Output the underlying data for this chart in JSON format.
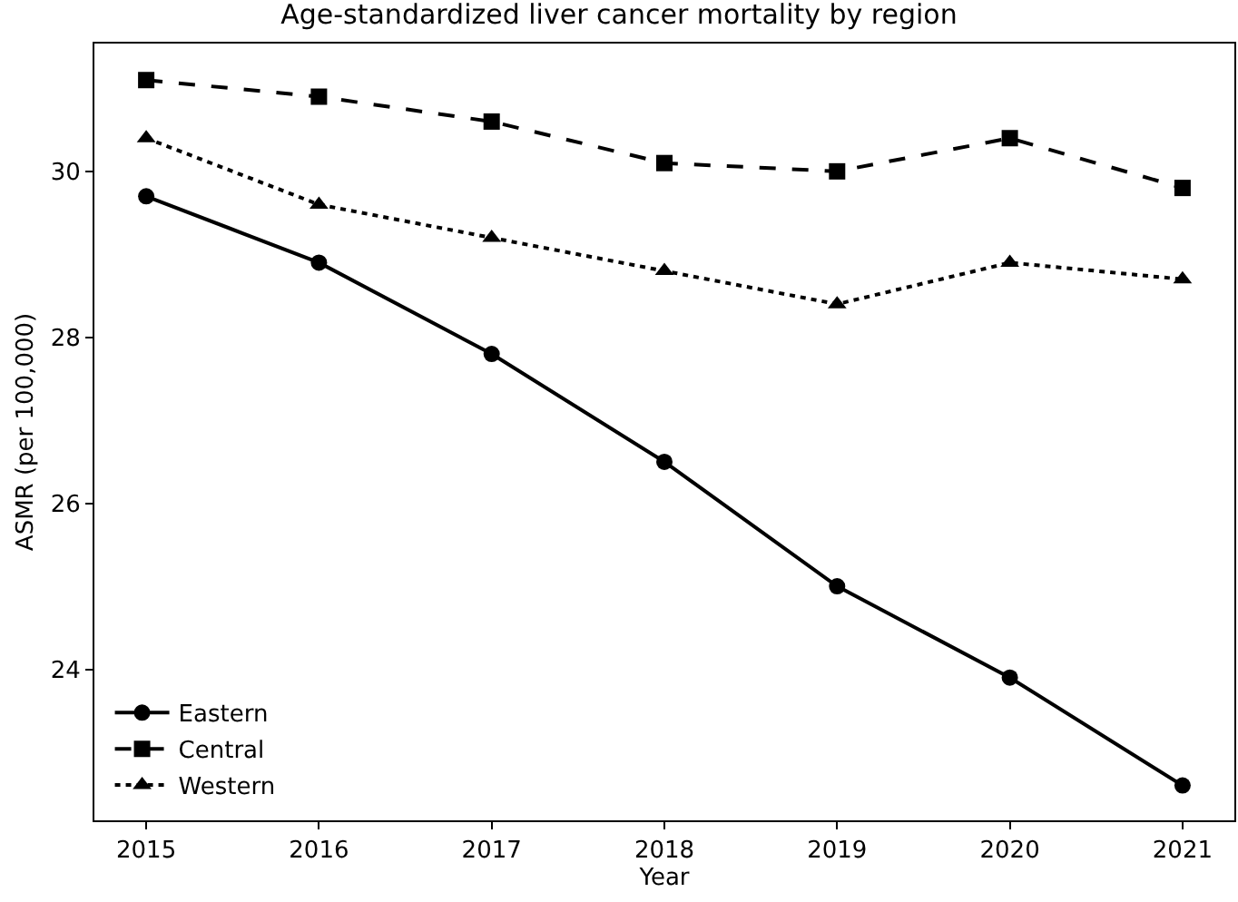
{
  "chart_data": {
    "type": "line",
    "title": "Age-standardized liver cancer mortality by region",
    "xlabel": "Year",
    "ylabel": "ASMR (per 100,000)",
    "x": [
      2015,
      2016,
      2017,
      2018,
      2019,
      2020,
      2021
    ],
    "series": [
      {
        "name": "Eastern",
        "color": "#000000",
        "marker": "circle",
        "line_style": "solid",
        "values": [
          29.7,
          28.9,
          27.8,
          26.5,
          25.0,
          23.9,
          22.6
        ]
      },
      {
        "name": "Central",
        "color": "#000000",
        "marker": "square",
        "line_style": "dashed",
        "values": [
          31.1,
          30.9,
          30.6,
          30.1,
          30.0,
          30.4,
          29.8
        ]
      },
      {
        "name": "Western",
        "color": "#000000",
        "marker": "triangle",
        "line_style": "dotted",
        "values": [
          30.4,
          29.6,
          29.2,
          28.8,
          28.4,
          28.9,
          28.7
        ]
      }
    ],
    "xlim": [
      2014.7,
      2021.3
    ],
    "xticks": [
      2015,
      2016,
      2017,
      2018,
      2019,
      2020,
      2021
    ],
    "ylim": [
      22.18,
      31.54
    ],
    "yticks": [
      24,
      26,
      28,
      30
    ],
    "legend": "bottom left"
  }
}
